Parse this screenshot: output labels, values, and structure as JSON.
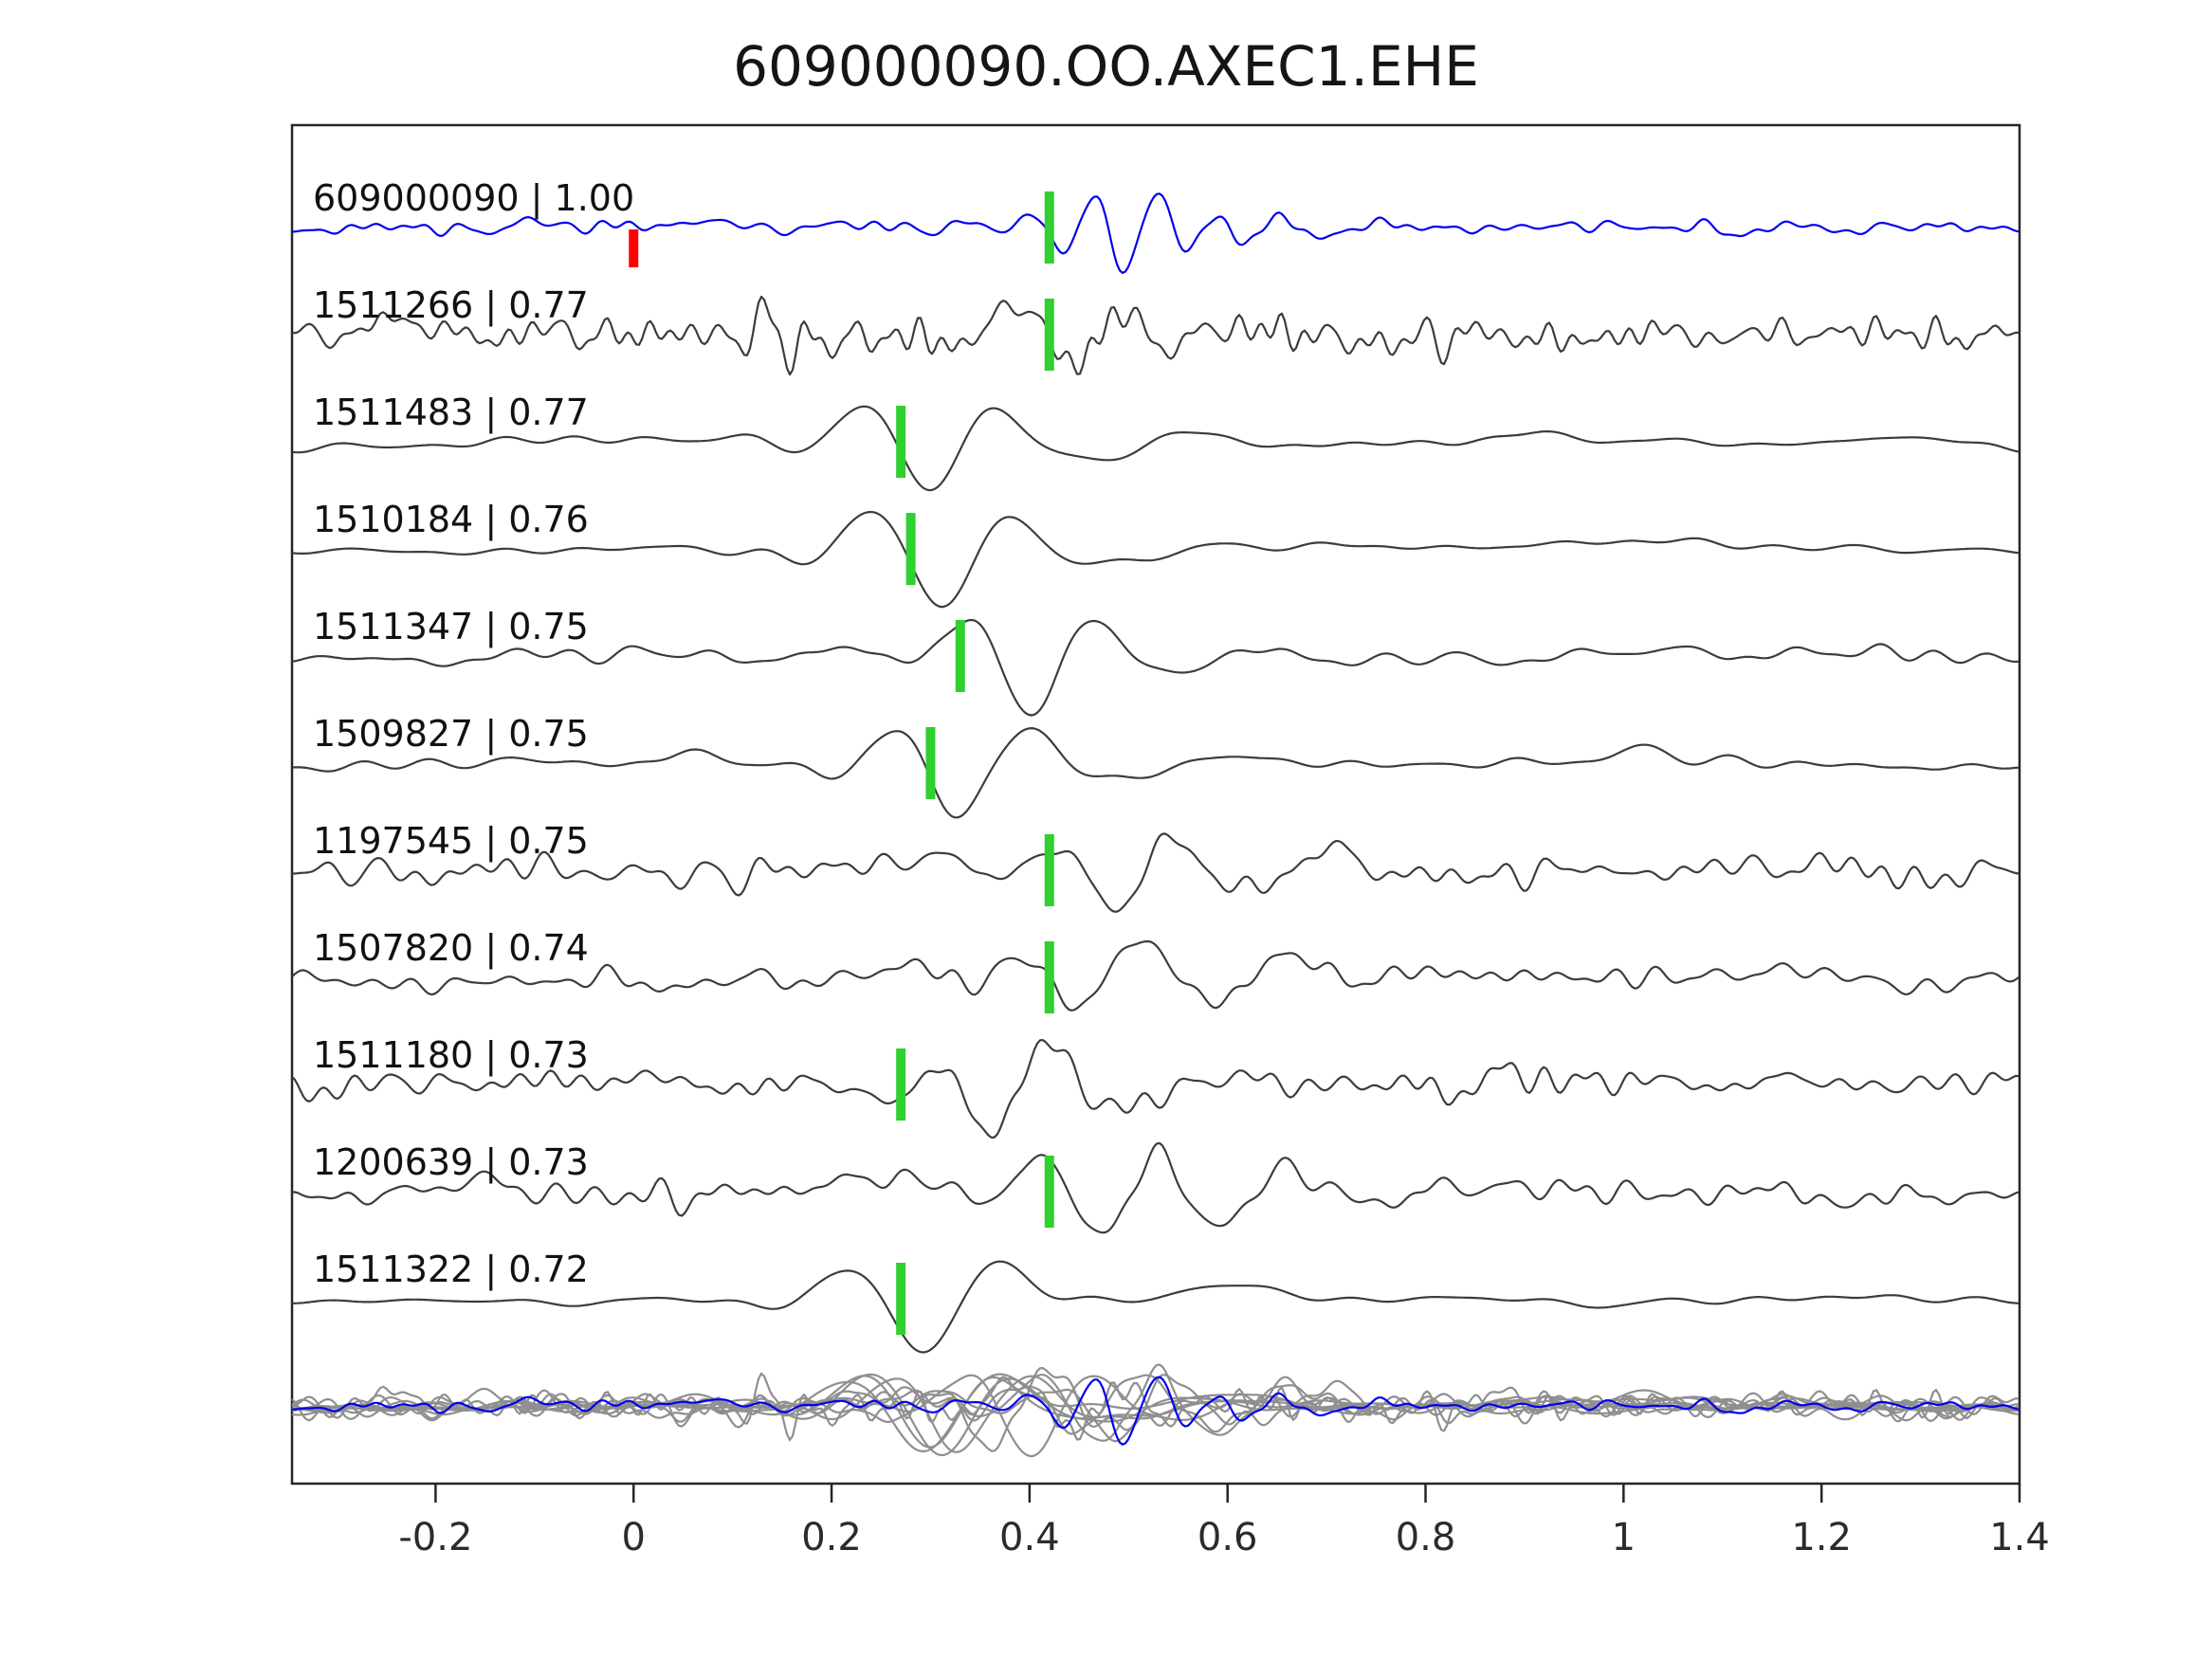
{
  "title": "609000090.OO.AXEC1.EHE",
  "chart_data": {
    "type": "line",
    "title": "609000090.OO.AXEC1.EHE",
    "subtitle": "",
    "xlabel": "",
    "ylabel": "",
    "xlim": [
      -0.345,
      1.4
    ],
    "xticks": [
      -0.2,
      0,
      0.2,
      0.4,
      0.6,
      0.8,
      1,
      1.2,
      1.4
    ],
    "xtick_labels": [
      "-0.2",
      "0",
      "0.2",
      "0.4",
      "0.6",
      "0.8",
      "1",
      "1.2",
      "1.4"
    ],
    "grid": false,
    "legend": "none",
    "description": "Template waveform (blue, top) compared against 10 detected event waveforms (gray). Label format: event id | cross-correlation coefficient. Green bars mark pick times, red bar marks template origin time at 0. Bottom row overlays all traces.",
    "colors": {
      "template": "#0000ee",
      "detection": "#3c3c3c",
      "overlay_detection": "#8f8f8f",
      "pick_marker": "#2fd02f",
      "template_marker": "#ff0000",
      "axis": "#262626",
      "background": "#ffffff"
    },
    "overlay": {
      "amp_scale": 0.85
    },
    "traces": [
      {
        "id": "609000090",
        "cc": "1.00",
        "label": "609000090 | 1.00",
        "role": "template",
        "pick": 0.42,
        "template_mark": 0,
        "wavelet": {
          "t0": 0.5,
          "freq": 15,
          "sigma": 0.06,
          "amp": 45,
          "phase": -1.2
        },
        "wavelet2": {
          "t0": 0.63,
          "freq": 11,
          "sigma": 0.05,
          "amp": 16,
          "phase": 0
        },
        "noise": {
          "seed": 101,
          "amp": 4,
          "harmonics": 70,
          "falloff": 0.25
        }
      },
      {
        "id": "1511266",
        "cc": "0.77",
        "label": "1511266 | 0.77",
        "role": "detection",
        "pick": 0.42,
        "wavelet": {
          "t0": 0.47,
          "freq": 10,
          "sigma": 0.07,
          "amp": 30,
          "phase": 0.4
        },
        "wavelet2": {
          "t0": 0.135,
          "freq": 18,
          "sigma": 0.018,
          "amp": 48,
          "phase": 1.57
        },
        "noise": {
          "seed": 202,
          "amp": 10,
          "harmonics": 90,
          "falloff": 0.2
        }
      },
      {
        "id": "1511483",
        "cc": "0.77",
        "label": "1511483 | 0.77",
        "role": "detection",
        "pick": 0.27,
        "wavelet": {
          "t0": 0.3,
          "freq": 7,
          "sigma": 0.075,
          "amp": 55,
          "phase": -1.57
        },
        "wavelet2": {
          "t0": 0.52,
          "freq": 6,
          "sigma": 0.06,
          "amp": 14,
          "phase": 0
        },
        "noise": {
          "seed": 303,
          "amp": 4,
          "harmonics": 30,
          "falloff": 0.5
        }
      },
      {
        "id": "1510184",
        "cc": "0.76",
        "label": "1510184 | 0.76",
        "role": "detection",
        "pick": 0.28,
        "wavelet": {
          "t0": 0.31,
          "freq": 6.5,
          "sigma": 0.08,
          "amp": 60,
          "phase": -1.57
        },
        "wavelet2": {
          "t0": 0.55,
          "freq": 5,
          "sigma": 0.07,
          "amp": 12,
          "phase": 0
        },
        "noise": {
          "seed": 404,
          "amp": 4,
          "harmonics": 28,
          "falloff": 0.5
        }
      },
      {
        "id": "1511347",
        "cc": "0.75",
        "label": "1511347 | 0.75",
        "role": "detection",
        "pick": 0.33,
        "wavelet": {
          "t0": 0.4,
          "freq": 7.5,
          "sigma": 0.07,
          "amp": 55,
          "phase": -1.57
        },
        "wavelet2": {
          "t0": 0.6,
          "freq": 5,
          "sigma": 0.06,
          "amp": 12,
          "phase": 0
        },
        "noise": {
          "seed": 505,
          "amp": 5,
          "harmonics": 40,
          "falloff": 0.4
        }
      },
      {
        "id": "1509827",
        "cc": "0.75",
        "label": "1509827 | 0.75",
        "role": "detection",
        "pick": 0.3,
        "wavelet": {
          "t0": 0.33,
          "freq": 7,
          "sigma": 0.07,
          "amp": 52,
          "phase": -1.57
        },
        "wavelet2": {
          "t0": 0.55,
          "freq": 5.5,
          "sigma": 0.07,
          "amp": 14,
          "phase": 0
        },
        "noise": {
          "seed": 606,
          "amp": 5,
          "harmonics": 32,
          "falloff": 0.5
        }
      },
      {
        "id": "1197545",
        "cc": "0.75",
        "label": "1197545 | 0.75",
        "role": "detection",
        "pick": 0.42,
        "wavelet": {
          "t0": 0.5,
          "freq": 8.5,
          "sigma": 0.085,
          "amp": 45,
          "phase": -0.8
        },
        "wavelet2": {
          "t0": 0.68,
          "freq": 8,
          "sigma": 0.05,
          "amp": 28,
          "phase": 0
        },
        "noise": {
          "seed": 707,
          "amp": 8,
          "harmonics": 60,
          "falloff": 0.3
        }
      },
      {
        "id": "1507820",
        "cc": "0.74",
        "label": "1507820 | 0.74",
        "role": "detection",
        "pick": 0.42,
        "wavelet": {
          "t0": 0.47,
          "freq": 8,
          "sigma": 0.09,
          "amp": 38,
          "phase": -0.6
        },
        "wavelet2": {
          "t0": 0.64,
          "freq": 7,
          "sigma": 0.05,
          "amp": 22,
          "phase": 0
        },
        "noise": {
          "seed": 808,
          "amp": 7,
          "harmonics": 55,
          "falloff": 0.3
        }
      },
      {
        "id": "1511180",
        "cc": "0.73",
        "label": "1511180 | 0.73",
        "role": "detection",
        "pick": 0.27,
        "wavelet": {
          "t0": 0.37,
          "freq": 8.5,
          "sigma": 0.075,
          "amp": 48,
          "phase": -1.2
        },
        "wavelet2": {
          "t0": 0.55,
          "freq": 6,
          "sigma": 0.06,
          "amp": 18,
          "phase": 0
        },
        "noise": {
          "seed": 909,
          "amp": 8,
          "harmonics": 65,
          "falloff": 0.28
        }
      },
      {
        "id": "1200639",
        "cc": "0.73",
        "label": "1200639 | 0.73",
        "role": "detection",
        "pick": 0.42,
        "wavelet": {
          "t0": 0.48,
          "freq": 8,
          "sigma": 0.08,
          "amp": 45,
          "phase": -1.0
        },
        "wavelet2": {
          "t0": 0.63,
          "freq": 6.5,
          "sigma": 0.055,
          "amp": 24,
          "phase": 0
        },
        "noise": {
          "seed": 1010,
          "amp": 8,
          "harmonics": 60,
          "falloff": 0.3
        }
      },
      {
        "id": "1511322",
        "cc": "0.72",
        "label": "1511322 | 0.72",
        "role": "detection",
        "pick": 0.27,
        "wavelet": {
          "t0": 0.3,
          "freq": 6,
          "sigma": 0.08,
          "amp": 55,
          "phase": -1.3
        },
        "wavelet2": {
          "t0": 0.55,
          "freq": 4,
          "sigma": 0.08,
          "amp": 12,
          "phase": 0
        },
        "noise": {
          "seed": 1111,
          "amp": 4,
          "harmonics": 26,
          "falloff": 0.55
        }
      }
    ]
  }
}
